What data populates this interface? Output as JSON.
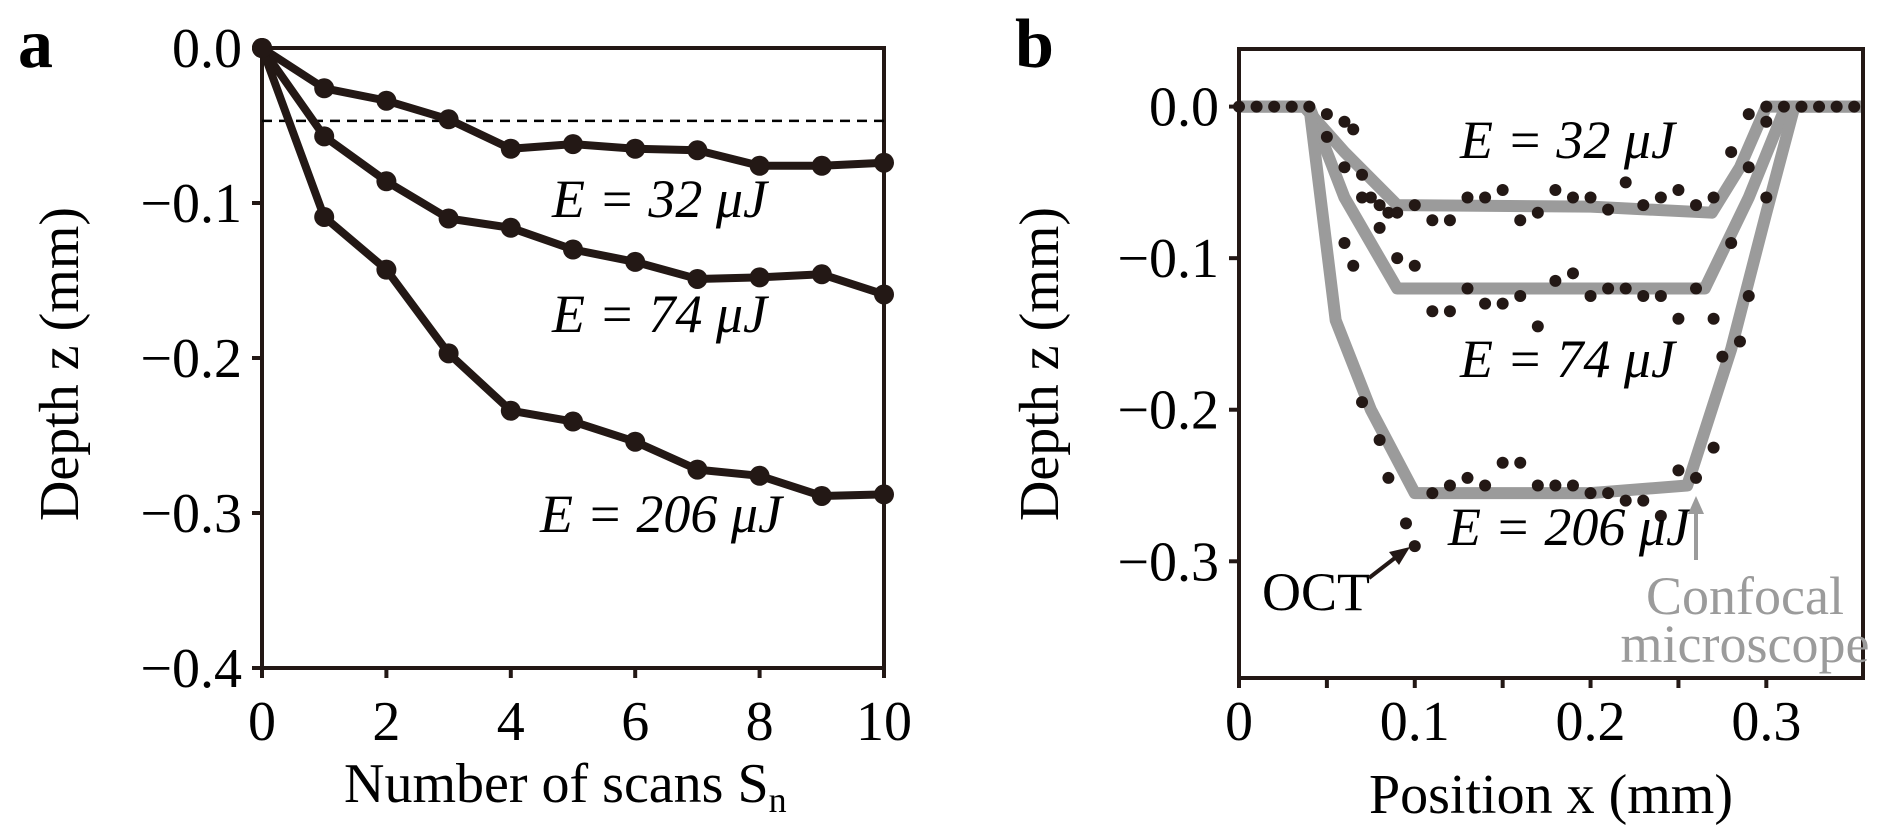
{
  "chart_data": [
    {
      "panel_label": "a",
      "type": "line",
      "xlabel": "Number of scans S",
      "xlabel_sub": "n",
      "ylabel": "Depth z (mm)",
      "xlim": [
        0,
        10
      ],
      "ylim": [
        -0.4,
        0.0
      ],
      "xticks": [
        "0",
        "2",
        "4",
        "6",
        "8",
        "10"
      ],
      "yticks": [
        "0.0",
        "−0.1",
        "−0.2",
        "−0.3",
        "−0.4"
      ],
      "x": [
        0,
        1,
        2,
        3,
        4,
        5,
        6,
        7,
        8,
        9,
        10
      ],
      "series": [
        {
          "name": "E = 32 μJ",
          "values": [
            0,
            -0.026,
            -0.034,
            -0.046,
            -0.065,
            -0.062,
            -0.065,
            -0.066,
            -0.076,
            -0.076,
            -0.074
          ]
        },
        {
          "name": "E = 74 μJ",
          "values": [
            0,
            -0.057,
            -0.086,
            -0.11,
            -0.116,
            -0.13,
            -0.138,
            -0.149,
            -0.148,
            -0.146,
            -0.159
          ]
        },
        {
          "name": "E = 206 μJ",
          "values": [
            0,
            -0.109,
            -0.143,
            -0.197,
            -0.234,
            -0.241,
            -0.254,
            -0.272,
            -0.276,
            -0.289,
            -0.288
          ]
        }
      ],
      "reference_line": {
        "style": "dashed",
        "y": -0.047
      },
      "color": "#231815"
    },
    {
      "panel_label": "b",
      "type": "scatter",
      "xlabel": "Position x (mm)",
      "ylabel": "Depth z (mm)",
      "xlim": [
        0,
        0.355
      ],
      "ylim": [
        -0.377,
        0.038
      ],
      "xticks": [
        "0",
        "0.1",
        "0.2",
        "0.3"
      ],
      "yticks": [
        "0.0",
        "−0.1",
        "−0.2",
        "−0.3"
      ],
      "series_labels": [
        "E = 32 μJ",
        "E = 74 μJ",
        "E = 206 μJ"
      ],
      "confocal": [
        {
          "name": "E = 32 μJ",
          "x": [
            0,
            0.037,
            0.06,
            0.09,
            0.2,
            0.269,
            0.285,
            0.3,
            0.355
          ],
          "y": [
            0,
            0,
            -0.03,
            -0.065,
            -0.066,
            -0.07,
            -0.04,
            0,
            0
          ]
        },
        {
          "name": "E = 74 μJ",
          "x": [
            0,
            0.04,
            0.06,
            0.09,
            0.2,
            0.265,
            0.29,
            0.311,
            0.355
          ],
          "y": [
            0,
            0,
            -0.06,
            -0.12,
            -0.12,
            -0.12,
            -0.06,
            0,
            0
          ]
        },
        {
          "name": "E = 206 μJ",
          "x": [
            0,
            0.04,
            0.055,
            0.075,
            0.1,
            0.2,
            0.255,
            0.28,
            0.3,
            0.316,
            0.355
          ],
          "y": [
            0,
            0,
            -0.141,
            -0.2,
            -0.255,
            -0.255,
            -0.25,
            -0.16,
            -0.07,
            0,
            0
          ]
        }
      ],
      "oct": [
        {
          "name": "E = 32 μJ",
          "points": [
            [
              0,
              0
            ],
            [
              0.01,
              0
            ],
            [
              0.02,
              0
            ],
            [
              0.03,
              0
            ],
            [
              0.04,
              0
            ],
            [
              0.05,
              -0.005
            ],
            [
              0.06,
              -0.01
            ],
            [
              0.065,
              -0.015
            ],
            [
              0.07,
              -0.045
            ],
            [
              0.075,
              -0.06
            ],
            [
              0.08,
              -0.065
            ],
            [
              0.085,
              -0.07
            ],
            [
              0.09,
              -0.07
            ],
            [
              0.1,
              -0.065
            ],
            [
              0.11,
              -0.075
            ],
            [
              0.12,
              -0.075
            ],
            [
              0.13,
              -0.06
            ],
            [
              0.14,
              -0.06
            ],
            [
              0.15,
              -0.055
            ],
            [
              0.16,
              -0.075
            ],
            [
              0.17,
              -0.07
            ],
            [
              0.18,
              -0.055
            ],
            [
              0.19,
              -0.06
            ],
            [
              0.2,
              -0.06
            ],
            [
              0.21,
              -0.068
            ],
            [
              0.22,
              -0.05
            ],
            [
              0.23,
              -0.065
            ],
            [
              0.24,
              -0.06
            ],
            [
              0.25,
              -0.055
            ],
            [
              0.26,
              -0.065
            ],
            [
              0.27,
              -0.06
            ],
            [
              0.28,
              -0.03
            ],
            [
              0.29,
              -0.005
            ],
            [
              0.3,
              0
            ],
            [
              0.31,
              0
            ],
            [
              0.32,
              0
            ],
            [
              0.33,
              0
            ],
            [
              0.34,
              0
            ],
            [
              0.35,
              0
            ]
          ]
        },
        {
          "name": "E = 74 μJ",
          "points": [
            [
              0.05,
              -0.02
            ],
            [
              0.06,
              -0.04
            ],
            [
              0.07,
              -0.06
            ],
            [
              0.08,
              -0.08
            ],
            [
              0.09,
              -0.1
            ],
            [
              0.1,
              -0.105
            ],
            [
              0.11,
              -0.135
            ],
            [
              0.12,
              -0.135
            ],
            [
              0.13,
              -0.12
            ],
            [
              0.14,
              -0.13
            ],
            [
              0.15,
              -0.13
            ],
            [
              0.16,
              -0.125
            ],
            [
              0.17,
              -0.145
            ],
            [
              0.18,
              -0.115
            ],
            [
              0.19,
              -0.11
            ],
            [
              0.2,
              -0.125
            ],
            [
              0.21,
              -0.12
            ],
            [
              0.22,
              -0.12
            ],
            [
              0.23,
              -0.125
            ],
            [
              0.24,
              -0.125
            ],
            [
              0.25,
              -0.14
            ],
            [
              0.26,
              -0.12
            ],
            [
              0.27,
              -0.14
            ],
            [
              0.28,
              -0.09
            ],
            [
              0.29,
              -0.04
            ],
            [
              0.3,
              -0.01
            ]
          ]
        },
        {
          "name": "E = 206 μJ",
          "points": [
            [
              0.06,
              -0.09
            ],
            [
              0.065,
              -0.105
            ],
            [
              0.07,
              -0.195
            ],
            [
              0.08,
              -0.22
            ],
            [
              0.085,
              -0.245
            ],
            [
              0.095,
              -0.275
            ],
            [
              0.1,
              -0.29
            ],
            [
              0.11,
              -0.255
            ],
            [
              0.12,
              -0.25
            ],
            [
              0.13,
              -0.245
            ],
            [
              0.14,
              -0.25
            ],
            [
              0.15,
              -0.235
            ],
            [
              0.16,
              -0.235
            ],
            [
              0.17,
              -0.25
            ],
            [
              0.18,
              -0.25
            ],
            [
              0.19,
              -0.25
            ],
            [
              0.2,
              -0.255
            ],
            [
              0.21,
              -0.255
            ],
            [
              0.22,
              -0.26
            ],
            [
              0.23,
              -0.26
            ],
            [
              0.24,
              -0.27
            ],
            [
              0.25,
              -0.24
            ],
            [
              0.26,
              -0.245
            ],
            [
              0.27,
              -0.225
            ],
            [
              0.275,
              -0.165
            ],
            [
              0.285,
              -0.155
            ],
            [
              0.29,
              -0.125
            ],
            [
              0.3,
              -0.06
            ]
          ]
        }
      ],
      "annotations": {
        "oct": "OCT",
        "confocal_line1": "Confocal",
        "confocal_line2": "microscope"
      },
      "colors": {
        "oct": "#231815",
        "confocal": "#9b9b9b"
      }
    }
  ]
}
